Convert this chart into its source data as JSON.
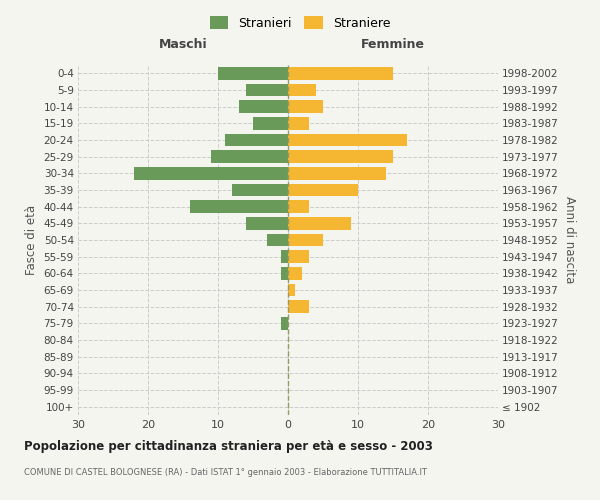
{
  "age_groups": [
    "100+",
    "95-99",
    "90-94",
    "85-89",
    "80-84",
    "75-79",
    "70-74",
    "65-69",
    "60-64",
    "55-59",
    "50-54",
    "45-49",
    "40-44",
    "35-39",
    "30-34",
    "25-29",
    "20-24",
    "15-19",
    "10-14",
    "5-9",
    "0-4"
  ],
  "birth_years": [
    "≤ 1902",
    "1903-1907",
    "1908-1912",
    "1913-1917",
    "1918-1922",
    "1923-1927",
    "1928-1932",
    "1933-1937",
    "1938-1942",
    "1943-1947",
    "1948-1952",
    "1953-1957",
    "1958-1962",
    "1963-1967",
    "1968-1972",
    "1973-1977",
    "1978-1982",
    "1983-1987",
    "1988-1992",
    "1993-1997",
    "1998-2002"
  ],
  "maschi": [
    0,
    0,
    0,
    0,
    0,
    1,
    0,
    0,
    1,
    1,
    3,
    6,
    14,
    8,
    22,
    11,
    9,
    5,
    7,
    6,
    10
  ],
  "femmine": [
    0,
    0,
    0,
    0,
    0,
    0,
    3,
    1,
    2,
    3,
    5,
    9,
    3,
    10,
    14,
    15,
    17,
    3,
    5,
    4,
    15
  ],
  "maschi_color": "#6a9a5a",
  "femmine_color": "#f5b731",
  "background_color": "#f5f5f0",
  "grid_color": "#cccccc",
  "title": "Popolazione per cittadinanza straniera per età e sesso - 2003",
  "subtitle": "COMUNE DI CASTEL BOLOGNESE (RA) - Dati ISTAT 1° gennaio 2003 - Elaborazione TUTTITALIA.IT",
  "ylabel_left": "Fasce di età",
  "ylabel_right": "Anni di nascita",
  "maschi_header": "Maschi",
  "femmine_header": "Femmine",
  "legend_stranieri": "Stranieri",
  "legend_straniere": "Straniere",
  "xlim": 30,
  "bar_height": 0.75
}
